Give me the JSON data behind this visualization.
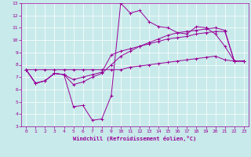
{
  "xlabel": "Windchill (Refroidissement éolien,°C)",
  "bg_color": "#c8eaea",
  "line_color": "#990099",
  "grid_color": "#ffffff",
  "xlim": [
    -0.5,
    23.5
  ],
  "ylim": [
    3,
    13
  ],
  "xticks": [
    0,
    1,
    2,
    3,
    4,
    5,
    6,
    7,
    8,
    9,
    10,
    11,
    12,
    13,
    14,
    15,
    16,
    17,
    18,
    19,
    20,
    21,
    22,
    23
  ],
  "yticks": [
    3,
    4,
    5,
    6,
    7,
    8,
    9,
    10,
    11,
    12,
    13
  ],
  "series": [
    [
      7.6,
      6.5,
      6.7,
      7.3,
      7.2,
      4.6,
      4.7,
      3.5,
      3.6,
      5.5,
      13.0,
      12.2,
      12.4,
      11.5,
      11.1,
      11.0,
      10.6,
      10.5,
      11.1,
      11.0,
      10.5,
      9.5,
      8.3,
      8.3
    ],
    [
      7.6,
      6.5,
      6.7,
      7.3,
      7.2,
      6.4,
      6.6,
      7.0,
      7.3,
      8.0,
      8.7,
      9.1,
      9.5,
      9.8,
      10.1,
      10.4,
      10.6,
      10.7,
      10.8,
      10.9,
      11.0,
      10.8,
      8.3,
      8.3
    ],
    [
      7.6,
      6.5,
      6.7,
      7.3,
      7.2,
      6.8,
      7.0,
      7.2,
      7.4,
      8.8,
      9.1,
      9.3,
      9.5,
      9.7,
      9.9,
      10.1,
      10.2,
      10.3,
      10.5,
      10.6,
      10.7,
      10.7,
      8.3,
      8.3
    ],
    [
      7.6,
      7.6,
      7.6,
      7.6,
      7.6,
      7.6,
      7.6,
      7.6,
      7.6,
      7.6,
      7.6,
      7.8,
      7.9,
      8.0,
      8.1,
      8.2,
      8.3,
      8.4,
      8.5,
      8.6,
      8.7,
      8.4,
      8.3,
      8.3
    ]
  ]
}
